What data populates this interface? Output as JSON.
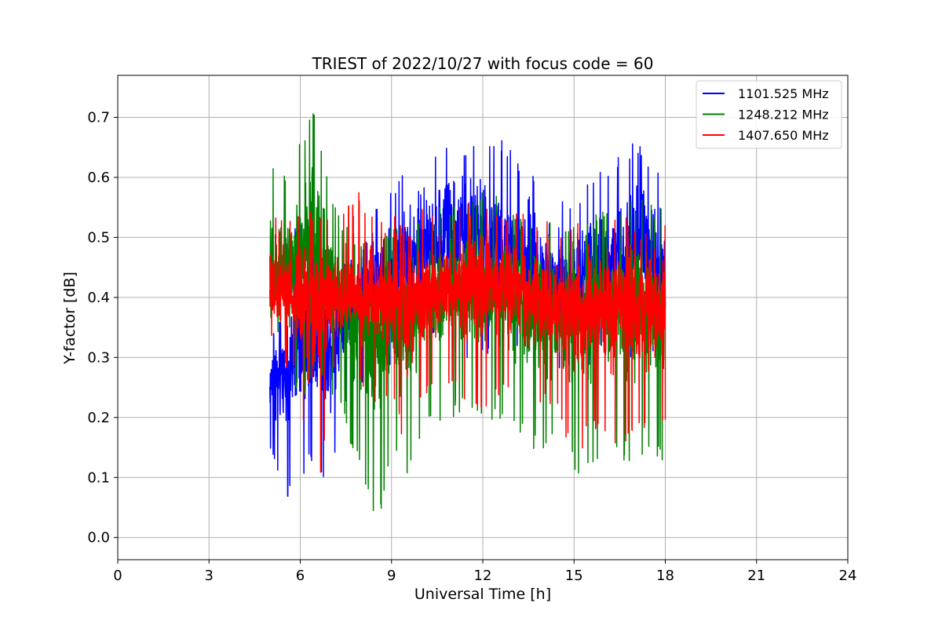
{
  "chart_data": {
    "type": "line",
    "title": "TRIEST of 2022/10/27 with focus code = 60",
    "xlabel": "Universal Time [h]",
    "ylabel": "Y-factor [dB]",
    "xlim": [
      0,
      24
    ],
    "ylim": [
      -0.037,
      0.77
    ],
    "xticks": [
      0,
      3,
      6,
      9,
      12,
      15,
      18,
      21,
      24
    ],
    "xtick_labels": [
      "0",
      "3",
      "6",
      "9",
      "12",
      "15",
      "18",
      "21",
      "24"
    ],
    "yticks": [
      0.0,
      0.1,
      0.2,
      0.3,
      0.4,
      0.5,
      0.6,
      0.7
    ],
    "ytick_labels": [
      "0.0",
      "0.1",
      "0.2",
      "0.3",
      "0.4",
      "0.5",
      "0.6",
      "0.7"
    ],
    "grid": true,
    "legend_position": "top-right",
    "x_range_of_data": [
      5.0,
      18.0
    ],
    "series": [
      {
        "name": "1101.525 MHz",
        "color": "#0000ff",
        "x": [
          5.0,
          5.5,
          6.0,
          6.5,
          7.0,
          7.5,
          8.0,
          8.5,
          9.0,
          9.5,
          10.0,
          10.5,
          11.0,
          11.5,
          12.0,
          12.5,
          13.0,
          13.5,
          14.0,
          14.5,
          15.0,
          15.5,
          16.0,
          16.5,
          17.0,
          17.5,
          18.0
        ],
        "upper": [
          0.31,
          0.5,
          0.53,
          0.55,
          0.4,
          0.46,
          0.49,
          0.55,
          0.58,
          0.62,
          0.64,
          0.66,
          0.68,
          0.66,
          0.69,
          0.67,
          0.65,
          0.62,
          0.6,
          0.58,
          0.57,
          0.6,
          0.62,
          0.64,
          0.66,
          0.64,
          0.61
        ],
        "mean": [
          0.26,
          0.27,
          0.3,
          0.32,
          0.33,
          0.37,
          0.4,
          0.43,
          0.45,
          0.47,
          0.48,
          0.49,
          0.5,
          0.5,
          0.5,
          0.49,
          0.48,
          0.46,
          0.44,
          0.43,
          0.43,
          0.44,
          0.46,
          0.47,
          0.48,
          0.47,
          0.45
        ],
        "lower": [
          0.14,
          0.05,
          0.1,
          0.12,
          0.08,
          0.22,
          0.25,
          0.3,
          0.28,
          0.3,
          0.31,
          0.32,
          0.3,
          0.3,
          0.29,
          0.31,
          0.3,
          0.29,
          0.27,
          0.28,
          0.29,
          0.28,
          0.3,
          0.31,
          0.29,
          0.3,
          0.3
        ]
      },
      {
        "name": "1248.212 MHz",
        "color": "#008000",
        "x": [
          5.0,
          5.5,
          6.0,
          6.5,
          7.0,
          7.5,
          8.0,
          8.5,
          9.0,
          9.5,
          10.0,
          10.5,
          11.0,
          11.5,
          12.0,
          12.5,
          13.0,
          13.5,
          14.0,
          14.5,
          15.0,
          15.5,
          16.0,
          16.5,
          17.0,
          17.5,
          18.0
        ],
        "upper": [
          0.65,
          0.6,
          0.66,
          0.73,
          0.57,
          0.52,
          0.5,
          0.5,
          0.52,
          0.53,
          0.54,
          0.55,
          0.56,
          0.57,
          0.58,
          0.57,
          0.56,
          0.54,
          0.53,
          0.52,
          0.52,
          0.53,
          0.55,
          0.56,
          0.57,
          0.56,
          0.55
        ],
        "mean": [
          0.42,
          0.45,
          0.47,
          0.48,
          0.42,
          0.38,
          0.36,
          0.34,
          0.35,
          0.37,
          0.39,
          0.4,
          0.41,
          0.41,
          0.41,
          0.4,
          0.39,
          0.38,
          0.37,
          0.37,
          0.37,
          0.38,
          0.39,
          0.39,
          0.38,
          0.38,
          0.37
        ],
        "lower": [
          0.37,
          0.27,
          0.22,
          0.28,
          0.24,
          0.18,
          0.1,
          0.0,
          0.15,
          0.08,
          0.17,
          0.19,
          0.2,
          0.21,
          0.19,
          0.2,
          0.18,
          0.16,
          0.12,
          0.17,
          0.11,
          0.1,
          0.15,
          0.13,
          0.12,
          0.14,
          0.12
        ]
      },
      {
        "name": "1407.650 MHz",
        "color": "#ff0000",
        "x": [
          5.0,
          5.5,
          6.0,
          6.5,
          7.0,
          7.5,
          8.0,
          8.5,
          9.0,
          9.5,
          10.0,
          10.5,
          11.0,
          11.5,
          12.0,
          12.5,
          13.0,
          13.5,
          14.0,
          14.5,
          15.0,
          15.5,
          16.0,
          16.5,
          17.0,
          17.5,
          18.0
        ],
        "upper": [
          0.55,
          0.53,
          0.54,
          0.55,
          0.54,
          0.55,
          0.58,
          0.53,
          0.54,
          0.52,
          0.55,
          0.56,
          0.55,
          0.56,
          0.57,
          0.56,
          0.55,
          0.54,
          0.53,
          0.52,
          0.53,
          0.54,
          0.56,
          0.54,
          0.53,
          0.52,
          0.52
        ],
        "mean": [
          0.41,
          0.4,
          0.4,
          0.4,
          0.4,
          0.4,
          0.4,
          0.4,
          0.4,
          0.39,
          0.4,
          0.41,
          0.41,
          0.42,
          0.42,
          0.42,
          0.41,
          0.4,
          0.39,
          0.38,
          0.38,
          0.38,
          0.39,
          0.39,
          0.38,
          0.38,
          0.37
        ],
        "lower": [
          0.32,
          0.28,
          0.24,
          0.0,
          0.26,
          0.27,
          0.25,
          0.2,
          0.23,
          0.13,
          0.22,
          0.23,
          0.24,
          0.22,
          0.21,
          0.22,
          0.24,
          0.23,
          0.22,
          0.21,
          0.11,
          0.18,
          0.17,
          0.13,
          0.18,
          0.17,
          0.19
        ]
      }
    ]
  }
}
